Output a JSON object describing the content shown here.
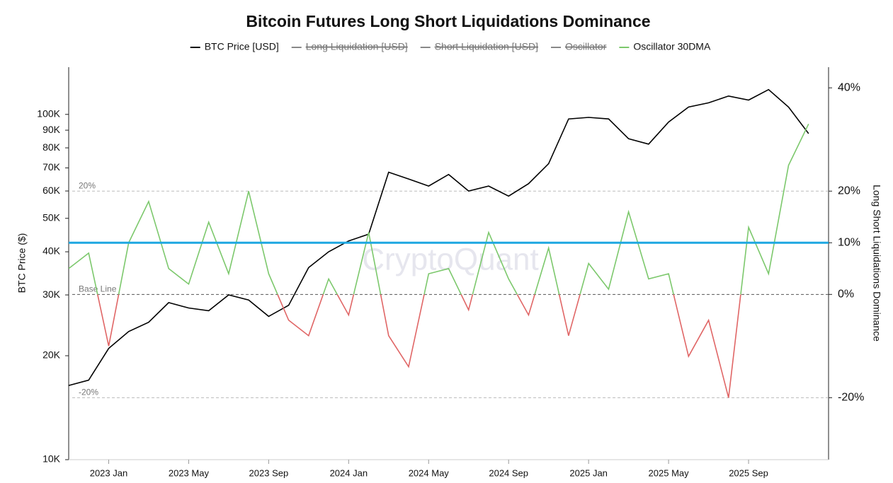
{
  "chart_data": {
    "type": "line",
    "title": "Bitcoin Futures Long Short Liquidations Dominance",
    "watermark": "CryptoQuant",
    "y_label": "BTC Price ($)",
    "y2_label": "Long Short Liquidations Dominance",
    "y_scale": "log",
    "xlim": [
      "2022-11",
      "2026-01"
    ],
    "xticks": [
      {
        "value": "2023-01",
        "label": "2023 Jan"
      },
      {
        "value": "2023-05",
        "label": "2023 May"
      },
      {
        "value": "2023-09",
        "label": "2023 Sep"
      },
      {
        "value": "2024-01",
        "label": "2024 Jan"
      },
      {
        "value": "2024-05",
        "label": "2024 May"
      },
      {
        "value": "2024-09",
        "label": "2024 Sep"
      },
      {
        "value": "2025-01",
        "label": "2025 Jan"
      },
      {
        "value": "2025-05",
        "label": "2025 May"
      },
      {
        "value": "2025-09",
        "label": "2025 Sep"
      }
    ],
    "ylim": [
      10000,
      137000
    ],
    "yticks": [
      {
        "value": 10000,
        "label": "10K"
      },
      {
        "value": 20000,
        "label": "20K"
      },
      {
        "value": 30000,
        "label": "30K"
      },
      {
        "value": 40000,
        "label": "40K"
      },
      {
        "value": 50000,
        "label": "50K"
      },
      {
        "value": 60000,
        "label": "60K"
      },
      {
        "value": 70000,
        "label": "70K"
      },
      {
        "value": 80000,
        "label": "80K"
      },
      {
        "value": 90000,
        "label": "90K"
      },
      {
        "value": 100000,
        "label": "100K"
      }
    ],
    "y2lim": [
      -32,
      44
    ],
    "y2ticks": [
      {
        "value": -20,
        "label": "-20%"
      },
      {
        "value": 0,
        "label": "0%"
      },
      {
        "value": 10,
        "label": "10%"
      },
      {
        "value": 20,
        "label": "20%"
      },
      {
        "value": 40,
        "label": "40%"
      }
    ],
    "reference_lines": [
      {
        "value": 20,
        "label": "20%"
      },
      {
        "value": 0,
        "label": "Base Line"
      },
      {
        "value": -20,
        "label": "-20%"
      }
    ],
    "highlight_line": {
      "value": 10,
      "color": "#1ea7e1"
    },
    "x": [
      "2022-11",
      "2022-12",
      "2023-01",
      "2023-02",
      "2023-03",
      "2023-04",
      "2023-05",
      "2023-06",
      "2023-07",
      "2023-08",
      "2023-09",
      "2023-10",
      "2023-11",
      "2023-12",
      "2024-01",
      "2024-02",
      "2024-03",
      "2024-04",
      "2024-05",
      "2024-06",
      "2024-07",
      "2024-08",
      "2024-09",
      "2024-10",
      "2024-11",
      "2024-12",
      "2025-01",
      "2025-02",
      "2025-03",
      "2025-04",
      "2025-05",
      "2025-06",
      "2025-07",
      "2025-08",
      "2025-09",
      "2025-10",
      "2025-11",
      "2025-12"
    ],
    "series": [
      {
        "name": "BTC Price [USD]",
        "color": "#000000",
        "values": [
          16400,
          17000,
          21000,
          23500,
          25000,
          28500,
          27500,
          27000,
          30000,
          29000,
          26000,
          28000,
          36000,
          40000,
          43000,
          45000,
          68000,
          65000,
          62000,
          67000,
          60000,
          62000,
          58000,
          63000,
          72000,
          97000,
          98000,
          97000,
          85000,
          82000,
          95000,
          105000,
          108000,
          113000,
          110000,
          118000,
          105000,
          88000
        ]
      },
      {
        "name": "Oscillator 30DMA",
        "color": "#7cc86c",
        "negative_color": "#e06666",
        "axis": "y2",
        "values": [
          5,
          8,
          -10,
          10,
          18,
          5,
          2,
          14,
          4,
          20,
          4,
          -5,
          -8,
          3,
          -4,
          12,
          -8,
          -14,
          4,
          5,
          -3,
          12,
          3,
          -4,
          9,
          -8,
          6,
          1,
          16,
          3,
          4,
          -12,
          -5,
          -20,
          13,
          4,
          25,
          33
        ]
      }
    ],
    "hidden_series": [
      {
        "name": "Long Liquidation [USD]",
        "color": "#888888"
      },
      {
        "name": "Short Liquidation [USD]",
        "color": "#888888"
      },
      {
        "name": "Oscillator",
        "color": "#888888"
      }
    ]
  }
}
